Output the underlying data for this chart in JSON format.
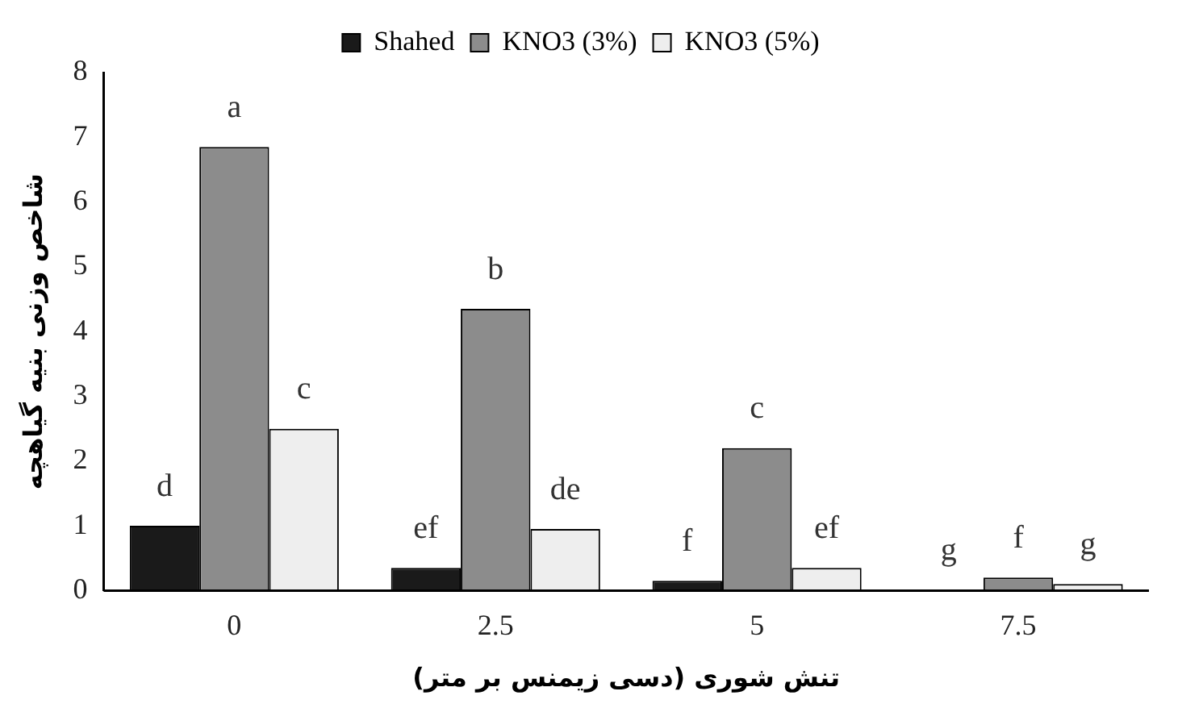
{
  "chart_data": {
    "type": "bar",
    "xlabel": "تنش شوری (دسی زیمنس بر متر)",
    "ylabel": "شاخص وزنی بنیه گیاهچه",
    "categories": [
      "0",
      "2.5",
      "5",
      "7.5"
    ],
    "series": [
      {
        "name": "Shahed",
        "color": "#1a1a1a",
        "values": [
          1.0,
          0.35,
          0.15,
          0.01
        ],
        "value_labels": [
          "d",
          "ef",
          "f",
          "g"
        ]
      },
      {
        "name": "KNO3 (3%)",
        "color": "#8c8c8c",
        "values": [
          6.85,
          4.35,
          2.2,
          0.2
        ],
        "value_labels": [
          "a",
          "b",
          "c",
          "f"
        ]
      },
      {
        "name": "KNO3 (5%)",
        "color": "#eeeeee",
        "values": [
          2.5,
          0.95,
          0.35,
          0.1
        ],
        "value_labels": [
          "c",
          "de",
          "ef",
          "g"
        ]
      }
    ],
    "ylim": [
      0,
      8
    ],
    "yticks": [
      0,
      1,
      2,
      3,
      4,
      5,
      6,
      7,
      8
    ],
    "grid": false,
    "legend": "top"
  }
}
